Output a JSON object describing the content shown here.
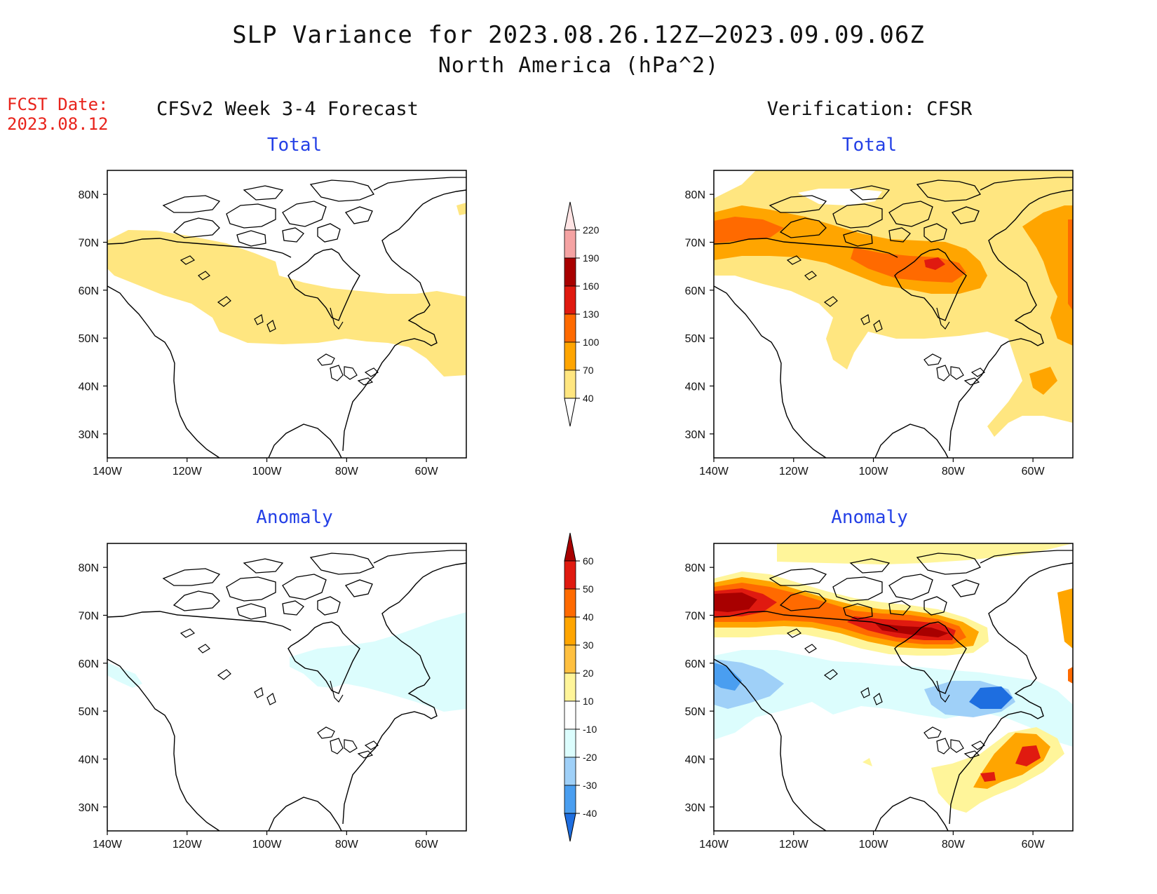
{
  "title": {
    "line1": "SLP Variance for 2023.08.26.12Z–2023.09.09.06Z",
    "line2": "North America (hPa^2)"
  },
  "fcst_date": {
    "label": "FCST Date:",
    "value": "2023.08.12"
  },
  "columns": {
    "left": "CFSv2 Week 3-4 Forecast",
    "right": "Verification: CFSR"
  },
  "panels": {
    "top_left_title": "Total",
    "top_right_title": "Total",
    "bottom_left_title": "Anomaly",
    "bottom_right_title": "Anomaly"
  },
  "axes": {
    "lat_labels": [
      "80N",
      "70N",
      "60N",
      "50N",
      "40N",
      "30N"
    ],
    "lon_labels": [
      "140W",
      "120W",
      "100W",
      "80W",
      "60W"
    ],
    "lat_values": [
      80,
      70,
      60,
      50,
      40,
      30
    ],
    "lon_values": [
      -140,
      -120,
      -100,
      -80,
      -60
    ],
    "lat_range": [
      25,
      85
    ],
    "lon_range": [
      -140,
      -50
    ]
  },
  "colorbar_total": {
    "labels": [
      "220",
      "190",
      "160",
      "130",
      "100",
      "70",
      "40"
    ],
    "colors": [
      "#ffe4e4",
      "#f5a3a3",
      "#a80000",
      "#e01a10",
      "#ff6a00",
      "#ffa500",
      "#ffe680"
    ],
    "range": "40-220 hPa^2"
  },
  "colorbar_anom": {
    "labels": [
      "60",
      "50",
      "40",
      "30",
      "20",
      "10",
      "-10",
      "-20",
      "-30",
      "-40"
    ],
    "colors": [
      "#a80000",
      "#e01a10",
      "#ff6a00",
      "#ffa500",
      "#ffc040",
      "#fff59a",
      "#ffffff",
      "#dcfdfd",
      "#9fd0f8",
      "#4a9ef0",
      "#1e6ee0"
    ]
  },
  "colors": {
    "title_red": "#e8231b",
    "panel_title_blue": "#2440e6",
    "coast": "#000000"
  }
}
